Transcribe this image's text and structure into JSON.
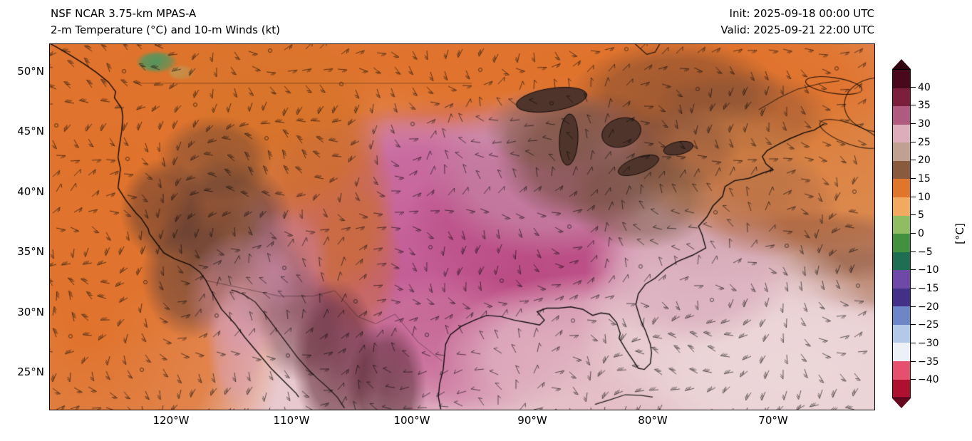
{
  "figure": {
    "title_line1": "NSF NCAR 3.75-km MPAS-A",
    "title_line2": "2-m Temperature (°C) and 10-m Winds (kt)",
    "init_text": "Init: 2025-09-18 00:00 UTC",
    "valid_text": "Valid: 2025-09-21 22:00 UTC"
  },
  "axes": {
    "lat_ticks": [
      "50°N",
      "45°N",
      "40°N",
      "35°N",
      "30°N",
      "25°N"
    ],
    "lon_ticks": [
      "120°W",
      "110°W",
      "100°W",
      "90°W",
      "80°W",
      "70°W"
    ]
  },
  "colorbar": {
    "unit_label": "[°C]",
    "min": -40,
    "max": 40,
    "interval": 5,
    "tick_labels": [
      "40",
      "35",
      "30",
      "25",
      "20",
      "15",
      "10",
      "5",
      "0",
      "−5",
      "−10",
      "−15",
      "−20",
      "−25",
      "−30",
      "−35",
      "−40"
    ],
    "band_colors_top_to_bottom": [
      "#4a081c",
      "#7c1f3d",
      "#b05a80",
      "#ddadbc",
      "#bfa091",
      "#8a5a3c",
      "#e0762c",
      "#f2aa60",
      "#90bd62",
      "#41913f",
      "#1d6e52",
      "#6f49a8",
      "#433089",
      "#6c86c8",
      "#b3c9e8",
      "#eef0f8",
      "#e4506e",
      "#b01030"
    ],
    "arrow_top_color": "#2f000d",
    "arrow_bottom_color": "#66081d"
  },
  "map_palette": {
    "ocean_orange": "#e0732c",
    "hot_magenta": "#c2568e",
    "pale_pink": "#e8c9cf",
    "terrain_brown": "#5c3a31",
    "lake_brown": "#4f342b"
  }
}
